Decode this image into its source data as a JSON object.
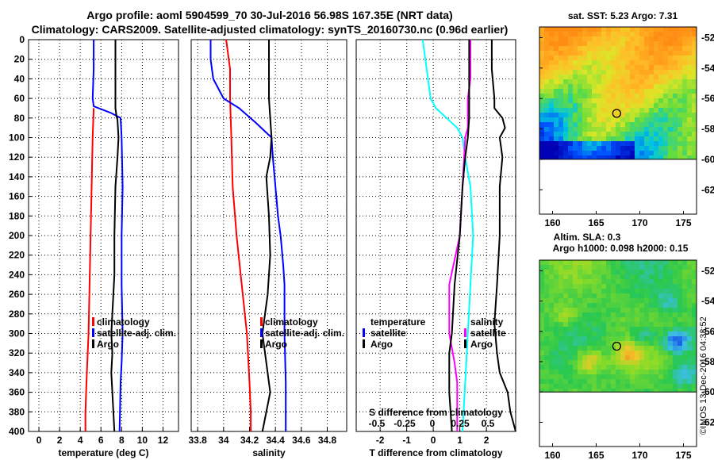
{
  "header": {
    "line1": "Argo profile: aoml 5904599_70 30-Jul-2016 56.98S 167.35E (NRT data)",
    "line2": "Climatology: CARS2009. Satellite-adjusted climatology: synTS_20160730.nc (0.96d earlier)"
  },
  "colors": {
    "climatology": "#ff0000",
    "satellite": "#0000ff",
    "argo": "#000000",
    "t_sat": "#00ffff",
    "s_sat": "#ff00ff",
    "sst_point": "#f0d020"
  },
  "chart_data": [
    {
      "type": "line",
      "id": "temperature",
      "xlabel": "temperature (deg C)",
      "xlim": [
        -1,
        13.5
      ],
      "xticks": [
        0,
        2,
        4,
        6,
        8,
        10,
        12
      ],
      "xtick_labels": [
        "0",
        "2",
        "4",
        "6",
        "8",
        "10",
        "12"
      ],
      "ylim": [
        0,
        400
      ],
      "yticks": [
        0,
        20,
        40,
        60,
        80,
        100,
        120,
        140,
        160,
        180,
        200,
        220,
        240,
        260,
        280,
        300,
        320,
        340,
        360,
        380,
        400
      ],
      "ytick_labels": [
        "0",
        "20",
        "40",
        "60",
        "80",
        "100",
        "120",
        "140",
        "160",
        "180",
        "200",
        "220",
        "240",
        "260",
        "280",
        "300",
        "320",
        "340",
        "360",
        "380",
        "400"
      ],
      "legend": [
        "climatology",
        "satellite-adj. clim.",
        "Argo"
      ],
      "series": [
        {
          "name": "climatology",
          "depth": [
            70,
            100,
            150,
            200,
            250,
            300,
            350,
            380,
            400
          ],
          "values": [
            5.3,
            5.2,
            5.1,
            5.0,
            4.9,
            4.8,
            4.6,
            4.5,
            4.5
          ]
        },
        {
          "name": "satellite-adj. clim.",
          "depth": [
            0,
            30,
            60,
            68,
            75,
            80,
            100,
            150,
            200,
            250,
            300,
            330,
            350,
            400
          ],
          "values": [
            5.3,
            5.3,
            5.2,
            5.3,
            7.0,
            7.9,
            8.0,
            8.1,
            8.0,
            8.0,
            8.1,
            8.0,
            7.9,
            7.8
          ]
        },
        {
          "name": "Argo",
          "depth": [
            0,
            20,
            50,
            70,
            78,
            82,
            100,
            120,
            150,
            200,
            240,
            280,
            300,
            320,
            340,
            360,
            380,
            400
          ],
          "values": [
            7.4,
            7.4,
            7.4,
            7.4,
            7.5,
            7.6,
            7.7,
            7.6,
            7.4,
            7.3,
            7.3,
            7.1,
            7.0,
            7.1,
            7.0,
            7.1,
            7.2,
            7.3
          ]
        }
      ]
    },
    {
      "type": "line",
      "id": "salinity",
      "xlabel": "salinity",
      "xlim": [
        33.75,
        34.95
      ],
      "xticks": [
        33.8,
        34.0,
        34.2,
        34.4,
        34.6,
        34.8
      ],
      "xtick_labels": [
        "33.8",
        "34",
        "34.2",
        "34.4",
        "34.6",
        "34.8"
      ],
      "ylim": [
        0,
        400
      ],
      "legend": [
        "climatology",
        "satellite-adj. clim.",
        "Argo"
      ],
      "series": [
        {
          "name": "climatology",
          "depth": [
            0,
            10,
            30,
            60,
            100,
            150,
            200,
            250,
            300,
            350,
            380,
            400
          ],
          "values": [
            34.02,
            34.03,
            34.05,
            34.05,
            34.06,
            34.07,
            34.1,
            34.14,
            34.18,
            34.2,
            34.21,
            34.21
          ]
        },
        {
          "name": "satellite-adj. clim.",
          "depth": [
            0,
            20,
            40,
            60,
            70,
            85,
            100,
            120,
            150,
            180,
            200,
            230,
            250,
            300,
            350,
            400
          ],
          "values": [
            33.9,
            33.9,
            33.92,
            34.0,
            34.12,
            34.25,
            34.37,
            34.38,
            34.4,
            34.42,
            34.44,
            34.46,
            34.47,
            34.47,
            34.48,
            34.48
          ]
        },
        {
          "name": "Argo",
          "depth": [
            0,
            20,
            60,
            80,
            100,
            120,
            140,
            180,
            220,
            260,
            280,
            300,
            330,
            360,
            400
          ],
          "values": [
            34.35,
            34.35,
            34.35,
            34.36,
            34.37,
            34.36,
            34.33,
            34.35,
            34.36,
            34.34,
            34.32,
            34.3,
            34.33,
            34.36,
            34.3
          ]
        }
      ]
    },
    {
      "type": "line",
      "id": "difference",
      "xlabel": "T difference from climatology",
      "xlim": [
        -2.9,
        3.1
      ],
      "xticks": [
        -2,
        -1,
        0,
        1,
        2
      ],
      "xtick_labels": [
        "-2",
        "-1",
        "0",
        "1",
        "2"
      ],
      "top_label": "S difference from climatology",
      "s_xticks": [
        -0.5,
        -0.25,
        0,
        0.25,
        0.5
      ],
      "s_xtick_labels": [
        "-0.5",
        "-0.25",
        "0",
        "0.25",
        "0.5"
      ],
      "ylim": [
        0,
        400
      ],
      "legend_left": {
        "title": "temperature",
        "items": [
          "satellite",
          "Argo"
        ]
      },
      "legend_right": {
        "title": "salinity",
        "items": [
          "satellite",
          "Argo"
        ]
      },
      "series": [
        {
          "name": "T satellite",
          "depth": [
            0,
            20,
            40,
            60,
            70,
            80,
            90,
            100,
            120,
            150,
            200,
            250,
            300,
            350,
            400
          ],
          "values": [
            -0.4,
            -0.3,
            -0.2,
            -0.1,
            0.1,
            0.5,
            0.9,
            1.1,
            1.2,
            1.4,
            1.5,
            1.4,
            1.3,
            1.2,
            1.1
          ]
        },
        {
          "name": "T Argo",
          "depth": [
            0,
            30,
            60,
            70,
            80,
            90,
            100,
            120,
            150,
            200,
            250,
            290,
            320,
            340,
            360,
            380,
            400
          ],
          "values": [
            2.2,
            2.2,
            2.3,
            2.3,
            2.6,
            2.7,
            2.5,
            2.6,
            2.5,
            2.5,
            2.4,
            2.3,
            2.4,
            2.5,
            2.8,
            2.9,
            3.1
          ]
        },
        {
          "name": "S satellite",
          "depth": [
            0,
            40,
            60,
            80,
            90,
            100,
            150,
            200,
            250,
            300,
            330,
            350,
            400
          ],
          "values": [
            1.4,
            1.4,
            1.3,
            1.3,
            1.3,
            1.2,
            1.1,
            1.0,
            0.6,
            0.6,
            0.8,
            0.9,
            0.9
          ]
        },
        {
          "name": "S Argo",
          "depth": [
            0,
            40,
            80,
            100,
            120,
            150,
            200,
            250,
            300,
            320,
            340,
            360,
            400
          ],
          "values": [
            1.35,
            1.35,
            1.35,
            1.3,
            1.2,
            1.1,
            1.0,
            0.8,
            0.7,
            0.6,
            0.6,
            0.6,
            0.7
          ]
        }
      ]
    },
    {
      "type": "heatmap",
      "id": "sst-map",
      "title": "sat. SST: 5.23 Argo: 7.31",
      "xlim": [
        158.5,
        176.5
      ],
      "ylim": [
        -63.6,
        -51.3
      ],
      "xticks": [
        160,
        165,
        170,
        175
      ],
      "xtick_labels": [
        "160",
        "165",
        "170",
        "175"
      ],
      "yticks": [
        -52,
        -54,
        -56,
        -58,
        -60,
        -62
      ],
      "ytick_labels": [
        "-52",
        "-54",
        "-56",
        "-58",
        "-60",
        "-62"
      ],
      "data_bottom": -60,
      "argo_point": [
        167.35,
        -56.98
      ]
    },
    {
      "type": "heatmap",
      "id": "sla-map",
      "title_line1": "Altim. SLA: 0.3",
      "title_line2": "Argo h1000: 0.098 h2000: 0.15",
      "xlim": [
        158.5,
        176.5
      ],
      "ylim": [
        -63.6,
        -51.3
      ],
      "xticks": [
        160,
        165,
        170,
        175
      ],
      "xtick_labels": [
        "160",
        "165",
        "170",
        "175"
      ],
      "yticks": [
        -52,
        -54,
        -56,
        -58,
        -60,
        -62
      ],
      "ytick_labels": [
        "-52",
        "-54",
        "-56",
        "-58",
        "-60",
        "-62"
      ],
      "data_bottom": -60,
      "argo_point": [
        167.35,
        -56.98
      ]
    }
  ],
  "watermark": "©IMOS 13-Dec-2016 04:33:52"
}
